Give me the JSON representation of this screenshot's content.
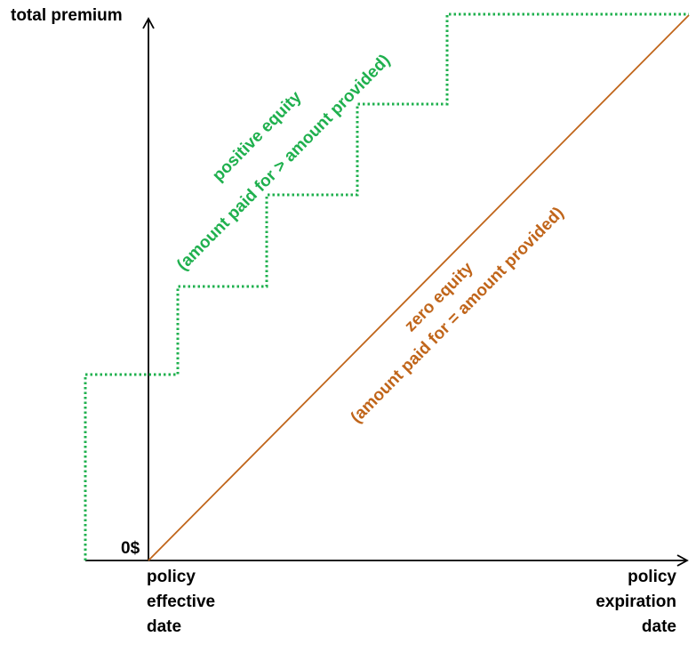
{
  "colors": {
    "axis": "#000000",
    "positive_equity": "#1fb04e",
    "zero_equity": "#c0651a",
    "background": "#ffffff"
  },
  "y_axis": {
    "label": "total premium",
    "origin_label": "0$"
  },
  "x_axis": {
    "start_label": [
      "policy",
      "effective",
      "date"
    ],
    "end_label": [
      "policy",
      "expiration",
      "date"
    ]
  },
  "positive_equity": {
    "line_style": "dotted",
    "label_line1": "positive equity",
    "label_line2": "(amount paid for > amount provided)"
  },
  "zero_equity": {
    "line_style": "solid",
    "label_line1": "zero equity",
    "label_line2": "(amount paid for = amount provided)"
  }
}
